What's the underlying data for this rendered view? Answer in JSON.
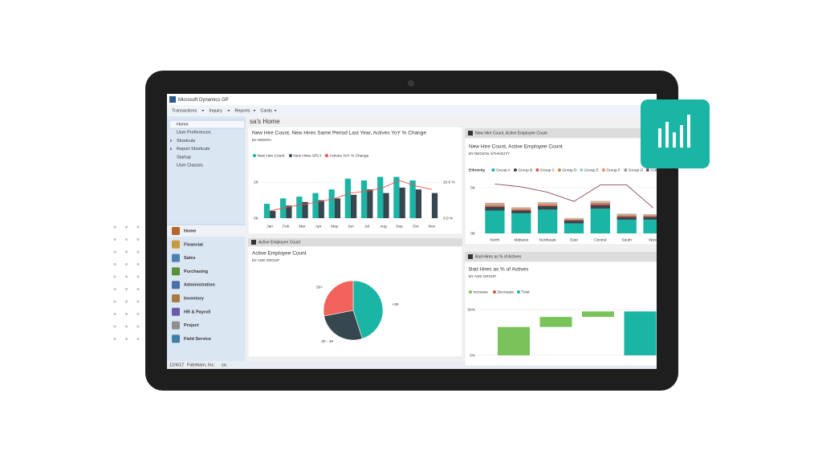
{
  "window": {
    "title": "Microsoft Dynamics GP",
    "menu": [
      "Transactions",
      "Inquiry",
      "Reports",
      "Cards"
    ]
  },
  "nav": {
    "items": [
      "Home",
      "User Preferences",
      "Shortcuts",
      "Report Shortcuts",
      "Startup",
      "User Classes"
    ],
    "modules": [
      "Home",
      "Financial",
      "Sales",
      "Purchasing",
      "Administration",
      "Inventory",
      "HR & Payroll",
      "Project",
      "Field Service"
    ]
  },
  "status": {
    "date": "12/4/17",
    "company": "Fabrikam, Inc.",
    "user": "sa"
  },
  "page_title": "sa's Home",
  "chart_data": [
    {
      "type": "combo",
      "title": "New Hire Count, New Hires Same Period Last Year, Actives YoY % Change",
      "subtitle": "BY MONTH",
      "categories": [
        "Jan",
        "Feb",
        "Mar",
        "Apr",
        "May",
        "Jun",
        "Jul",
        "Aug",
        "Sep",
        "Oct",
        "Nov"
      ],
      "series": [
        {
          "name": "New Hire Count",
          "color": "#1bb5a5",
          "kind": "bar",
          "values": [
            800,
            1100,
            1200,
            1400,
            1600,
            2200,
            2100,
            2300,
            2300,
            2100,
            null
          ]
        },
        {
          "name": "New Hires SPLY",
          "color": "#37474f",
          "kind": "bar",
          "values": [
            400,
            700,
            900,
            1000,
            1100,
            1300,
            1600,
            1400,
            1700,
            1600,
            1400
          ]
        },
        {
          "name": "Actives YoY % Change",
          "color": "#e8524a",
          "kind": "line",
          "axis": "y2",
          "values": [
            2.0,
            3.0,
            3.8,
            4.5,
            5.5,
            7.0,
            7.5,
            8.5,
            10.5,
            9.0,
            8.0
          ]
        }
      ],
      "ylim": [
        0,
        2500
      ],
      "yticks": [
        {
          "value": 0,
          "label": "0K"
        },
        {
          "value": 2000,
          "label": "2K"
        }
      ],
      "y2lim": [
        0,
        12.5
      ],
      "y2ticks": [
        {
          "value": 0,
          "label": "0.0 %"
        },
        {
          "value": 10,
          "label": "10.0 %"
        }
      ],
      "grid": true
    },
    {
      "type": "pie",
      "header": "Active Employee Count",
      "title": "Active Employee Count",
      "subtitle": "BY AGE GROUP",
      "categories": [
        "<30",
        "30 - 49",
        "50+"
      ],
      "values": [
        45,
        27,
        28
      ],
      "colors": [
        "#1bb5a5",
        "#37474f",
        "#f0625a"
      ]
    },
    {
      "type": "stacked-bar-line",
      "header": "New Hire Count, Active Employee Count",
      "title": "New Hire Count, Active Employee Count",
      "subtitle": "BY REGION, ETHNICITY",
      "legend_title": "Ethnicity",
      "categories": [
        "North",
        "Midwest",
        "Northeast",
        "East",
        "Central",
        "South",
        "West"
      ],
      "series": [
        {
          "name": "Group A",
          "color": "#1bb5a5",
          "kind": "bar",
          "values": [
            2500,
            2200,
            2600,
            1100,
            2700,
            1500,
            1500
          ]
        },
        {
          "name": "Group B",
          "color": "#37474f",
          "kind": "bar",
          "values": [
            400,
            300,
            400,
            300,
            400,
            300,
            300
          ]
        },
        {
          "name": "Group C",
          "color": "#e8524a",
          "kind": "bar",
          "values": [
            150,
            120,
            140,
            100,
            150,
            120,
            100
          ]
        },
        {
          "name": "Group D",
          "color": "#c8874a",
          "kind": "bar",
          "values": [
            100,
            80,
            90,
            60,
            100,
            80,
            70
          ]
        },
        {
          "name": "Group E",
          "color": "#8fd1d0",
          "kind": "bar",
          "values": [
            80,
            60,
            70,
            50,
            80,
            60,
            50
          ]
        },
        {
          "name": "Group F",
          "color": "#f08a5d",
          "kind": "bar",
          "values": [
            60,
            50,
            60,
            40,
            60,
            50,
            40
          ]
        },
        {
          "name": "Group G",
          "color": "#9e9e9e",
          "kind": "bar",
          "values": [
            50,
            40,
            50,
            30,
            50,
            40,
            30
          ]
        },
        {
          "name": "Active Employee Count",
          "color": "#8e4a6b",
          "kind": "line",
          "values": [
            5400,
            5100,
            4500,
            3500,
            5300,
            5300,
            2800
          ]
        }
      ],
      "ylim": [
        0,
        6000
      ],
      "yticks": [
        {
          "value": 0,
          "label": "0K"
        },
        {
          "value": 5000,
          "label": "5K"
        }
      ],
      "grid": true
    },
    {
      "type": "waterfall",
      "header": "Bad Hires as % of Actives",
      "title": "Bad Hires as % of Actives",
      "subtitle": "BY AGE GROUP",
      "categories": [
        null,
        null,
        null,
        null
      ],
      "values": [
        31,
        11,
        6,
        48
      ],
      "kinds": [
        "increase",
        "increase",
        "increase",
        "total"
      ],
      "legend": [
        {
          "name": "Increase",
          "color": "#7ac35a"
        },
        {
          "name": "Decrease",
          "color": "#c0603e"
        },
        {
          "name": "Total",
          "color": "#1bb5a5"
        }
      ],
      "ylim": [
        0,
        55
      ],
      "yticks": [
        {
          "value": 0,
          "label": "0%"
        },
        {
          "value": 50,
          "label": "50%"
        }
      ],
      "grid": true
    }
  ]
}
